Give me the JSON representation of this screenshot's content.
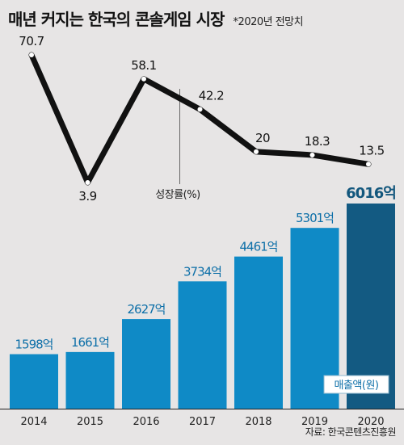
{
  "header": {
    "title": "매년 커지는 한국의 콘솔게임 시장",
    "subtitle": "*2020년 전망치"
  },
  "source": "자료: 한국콘텐츠진흥원",
  "colors": {
    "background": "#e7e5e5",
    "bar": "#0f8ac6",
    "bar_highlight": "#135a82",
    "bar_label": "#0d6fa8",
    "bar_label_highlight": "#13577d",
    "line": "#111111"
  },
  "chart_data": [
    {
      "type": "line",
      "series_label": "성장률(%)",
      "x": [
        "2014",
        "2015",
        "2016",
        "2017",
        "2018",
        "2019",
        "2020"
      ],
      "values": [
        70.7,
        3.9,
        58.1,
        42.2,
        20,
        18.3,
        13.5
      ],
      "value_labels": [
        "70.7",
        "3.9",
        "58.1",
        "42.2",
        "20",
        "18.3",
        "13.5"
      ]
    },
    {
      "type": "bar",
      "series_label": "매출액(원)",
      "categories": [
        "2014",
        "2015",
        "2016",
        "2017",
        "2018",
        "2019",
        "2020"
      ],
      "values": [
        1598,
        1661,
        2627,
        3734,
        4461,
        5301,
        6016
      ],
      "value_labels": [
        "1598억",
        "1661억",
        "2627억",
        "3734억",
        "4461억",
        "5301억",
        "6016억"
      ],
      "highlight_index": 6
    }
  ]
}
